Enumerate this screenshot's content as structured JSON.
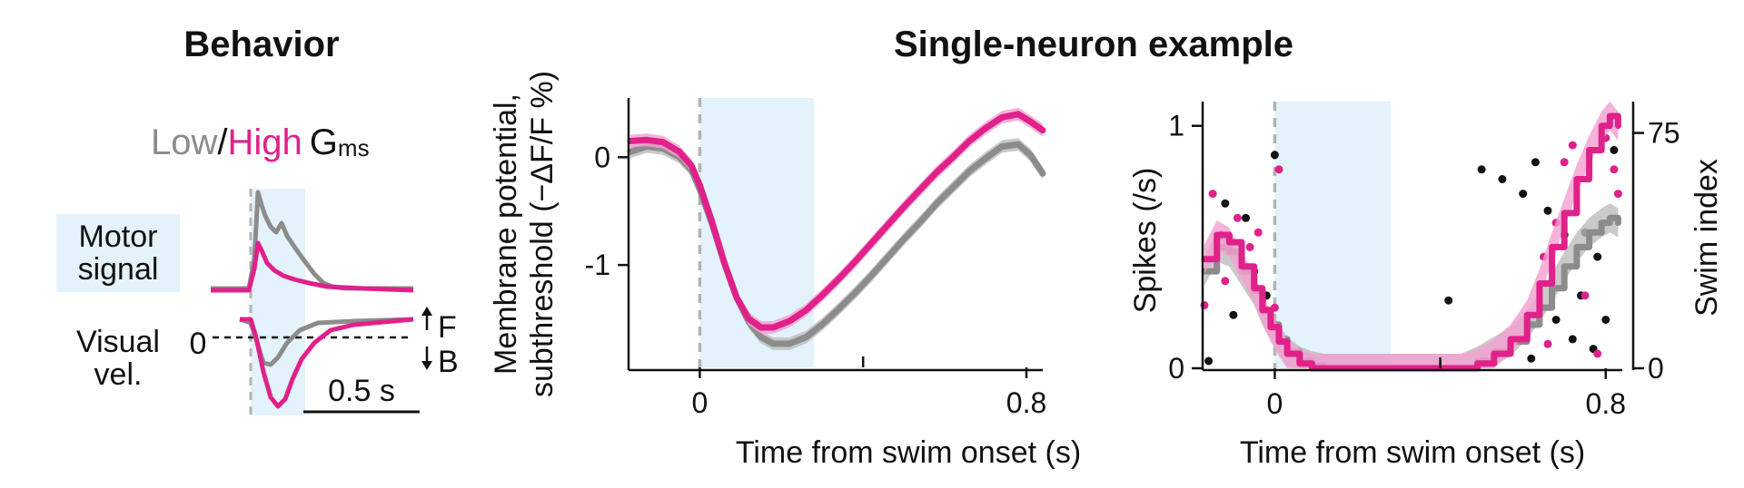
{
  "colors": {
    "low": "#8c8c8c",
    "high": "#e0218a",
    "low_band": "#bdbdbd",
    "high_band": "#f3a0cf",
    "shade": "#e4f2fb",
    "onset": "#b3b3b3",
    "dot_low": "#111111"
  },
  "behavior": {
    "title": "Behavior",
    "legend_low": "Low",
    "legend_sep": "/",
    "legend_high": "High",
    "legend_g": "G",
    "legend_g_sub": "ms",
    "motor_label_line1": "Motor",
    "motor_label_line2": "signal",
    "visual_label_line1": "Visual",
    "visual_label_line2": "vel.",
    "zero_label": "0",
    "forward_label": "F",
    "backward_label": "B",
    "scale_bar_label": "0.5 s"
  },
  "single_neuron_title": "Single-neuron example",
  "chart_data": [
    {
      "type": "line",
      "name": "membrane-potential",
      "ylabel_line1": "Membrane potential,",
      "ylabel_line2": "subthreshold (−ΔF/F %)",
      "xlabel": "Time from swim onset (s)",
      "xlim": [
        -0.17,
        0.84
      ],
      "ylim": [
        -1.95,
        0.55
      ],
      "x_tick_labels": [
        "0",
        "0.8"
      ],
      "y_tick_labels": [
        "0",
        "-1"
      ],
      "shaded_interval": [
        0.0,
        0.28
      ],
      "onset_line": 0.0,
      "series": [
        {
          "key": "low",
          "x": [
            -0.17,
            -0.13,
            -0.09,
            -0.05,
            -0.02,
            0.0,
            0.03,
            0.06,
            0.09,
            0.12,
            0.15,
            0.18,
            0.22,
            0.26,
            0.3,
            0.34,
            0.38,
            0.42,
            0.46,
            0.5,
            0.54,
            0.58,
            0.62,
            0.66,
            0.7,
            0.74,
            0.78,
            0.81,
            0.84
          ],
          "values": [
            0.05,
            0.1,
            0.08,
            0.0,
            -0.12,
            -0.3,
            -0.62,
            -0.98,
            -1.3,
            -1.53,
            -1.67,
            -1.73,
            -1.73,
            -1.67,
            -1.55,
            -1.41,
            -1.26,
            -1.1,
            -0.93,
            -0.76,
            -0.6,
            -0.43,
            -0.28,
            -0.13,
            -0.01,
            0.1,
            0.12,
            0.02,
            -0.15
          ]
        },
        {
          "key": "high",
          "x": [
            -0.17,
            -0.13,
            -0.09,
            -0.05,
            -0.02,
            0.0,
            0.03,
            0.06,
            0.09,
            0.12,
            0.15,
            0.18,
            0.22,
            0.26,
            0.3,
            0.34,
            0.38,
            0.42,
            0.46,
            0.5,
            0.54,
            0.58,
            0.62,
            0.66,
            0.7,
            0.74,
            0.78,
            0.81,
            0.84
          ],
          "values": [
            0.15,
            0.16,
            0.14,
            0.05,
            -0.08,
            -0.26,
            -0.6,
            -0.98,
            -1.3,
            -1.5,
            -1.58,
            -1.58,
            -1.52,
            -1.42,
            -1.28,
            -1.13,
            -0.97,
            -0.8,
            -0.63,
            -0.46,
            -0.3,
            -0.14,
            0.0,
            0.15,
            0.27,
            0.37,
            0.4,
            0.33,
            0.25
          ]
        }
      ]
    },
    {
      "type": "line",
      "name": "spikes",
      "ylabel": "Spikes (/s)",
      "y2label": "Swim index",
      "xlabel": "Time from swim onset (s)",
      "xlim": [
        -0.17,
        0.84
      ],
      "ylim": [
        0,
        1.1
      ],
      "y2lim": [
        0,
        85
      ],
      "x_tick_labels": [
        "0",
        "0.8"
      ],
      "y_tick_labels": [
        "1",
        "0"
      ],
      "y2_tick_labels": [
        "75",
        "0"
      ],
      "shaded_interval": [
        0.0,
        0.28
      ],
      "onset_line": 0.0,
      "series": [
        {
          "key": "low",
          "x": [
            -0.17,
            -0.14,
            -0.11,
            -0.08,
            -0.05,
            -0.03,
            -0.01,
            0.01,
            0.03,
            0.06,
            0.09,
            0.12,
            0.45,
            0.49,
            0.53,
            0.57,
            0.61,
            0.64,
            0.67,
            0.7,
            0.73,
            0.76,
            0.79,
            0.81,
            0.83
          ],
          "values": [
            0.4,
            0.5,
            0.48,
            0.4,
            0.32,
            0.24,
            0.18,
            0.12,
            0.07,
            0.03,
            0.01,
            0.0,
            0.0,
            0.03,
            0.07,
            0.11,
            0.18,
            0.25,
            0.33,
            0.42,
            0.5,
            0.56,
            0.6,
            0.62,
            0.6
          ]
        },
        {
          "key": "high",
          "x": [
            -0.17,
            -0.14,
            -0.11,
            -0.08,
            -0.05,
            -0.03,
            -0.01,
            0.01,
            0.03,
            0.06,
            0.09,
            0.12,
            0.45,
            0.49,
            0.53,
            0.57,
            0.61,
            0.64,
            0.67,
            0.7,
            0.73,
            0.76,
            0.79,
            0.81,
            0.83
          ],
          "values": [
            0.45,
            0.55,
            0.52,
            0.42,
            0.33,
            0.24,
            0.17,
            0.11,
            0.06,
            0.02,
            0.0,
            0.0,
            0.0,
            0.02,
            0.06,
            0.12,
            0.22,
            0.35,
            0.5,
            0.64,
            0.78,
            0.9,
            1.0,
            1.04,
            1.0
          ]
        }
      ],
      "scatter": [
        {
          "key": "dot_low",
          "x": [
            -0.16,
            -0.12,
            -0.1,
            -0.07,
            -0.13,
            -0.05,
            -0.02,
            0.0,
            0.42,
            0.5,
            0.55,
            0.6,
            0.62,
            0.66,
            0.68,
            0.72,
            0.75,
            0.78,
            0.8,
            0.63,
            0.7,
            0.74,
            0.77,
            0.82
          ],
          "values": [
            0.03,
            0.68,
            0.22,
            0.62,
            0.55,
            0.4,
            0.3,
            0.88,
            0.28,
            0.82,
            0.78,
            0.72,
            0.04,
            0.65,
            0.2,
            0.12,
            0.56,
            0.46,
            0.2,
            0.85,
            0.55,
            0.3,
            0.08,
            0.9
          ]
        },
        {
          "key": "high",
          "x": [
            -0.17,
            -0.15,
            -0.12,
            -0.09,
            -0.06,
            -0.04,
            -0.03,
            0.0,
            0.01,
            0.62,
            0.65,
            0.68,
            0.7,
            0.72,
            0.75,
            0.78,
            0.8,
            0.82,
            0.83,
            0.66
          ],
          "values": [
            0.26,
            0.72,
            0.36,
            0.62,
            0.5,
            0.56,
            0.28,
            0.25,
            0.82,
            0.18,
            0.46,
            0.6,
            0.85,
            0.92,
            0.3,
            0.06,
            0.95,
            0.82,
            0.72,
            0.1
          ]
        }
      ]
    }
  ]
}
